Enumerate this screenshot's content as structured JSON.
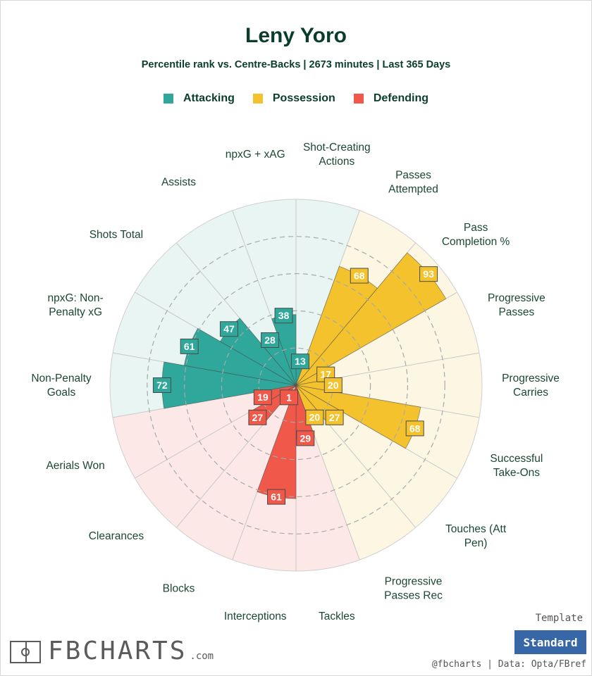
{
  "title": "Leny Yoro",
  "subtitle": "Percentile rank vs. Centre-Backs | 2673 minutes | Last 365 Days",
  "legend": [
    {
      "label": "Attacking",
      "color": "#2fa89b"
    },
    {
      "label": "Possession",
      "color": "#f3c22c"
    },
    {
      "label": "Defending",
      "color": "#f0584a"
    }
  ],
  "chart_data": {
    "type": "polar-bar",
    "title": "Leny Yoro",
    "subtitle": "Percentile rank vs. Centre-Backs | 2673 minutes | Last 365 Days",
    "range": [
      0,
      100
    ],
    "categories": [
      {
        "label": "Shot-Creating Actions",
        "value": 13,
        "group": "Attacking"
      },
      {
        "label": "Passes Attempted",
        "value": 68,
        "group": "Possession"
      },
      {
        "label": "Pass Completion %",
        "value": 93,
        "group": "Possession"
      },
      {
        "label": "Progressive Passes",
        "value": 17,
        "group": "Possession"
      },
      {
        "label": "Progressive Carries",
        "value": 20,
        "group": "Possession"
      },
      {
        "label": "Successful Take-Ons",
        "value": 68,
        "group": "Possession"
      },
      {
        "label": "Touches (Att Pen)",
        "value": 27,
        "group": "Possession"
      },
      {
        "label": "Progressive Passes Rec",
        "value": 20,
        "group": "Possession"
      },
      {
        "label": "Tackles",
        "value": 29,
        "group": "Defending"
      },
      {
        "label": "Interceptions",
        "value": 61,
        "group": "Defending"
      },
      {
        "label": "Blocks",
        "value": 1,
        "group": "Defending"
      },
      {
        "label": "Clearances",
        "value": 27,
        "group": "Defending"
      },
      {
        "label": "Aerials Won",
        "value": 19,
        "group": "Defending"
      },
      {
        "label": "Non-Penalty Goals",
        "value": 72,
        "group": "Attacking"
      },
      {
        "label": "npxG: Non-Penalty xG",
        "value": 61,
        "group": "Attacking"
      },
      {
        "label": "Shots Total",
        "value": 47,
        "group": "Attacking"
      },
      {
        "label": "Assists",
        "value": 28,
        "group": "Attacking"
      },
      {
        "label": "npxG + xAG",
        "value": 38,
        "group": "Attacking"
      }
    ],
    "grid": "dashed rings",
    "legend_position": "top"
  },
  "footer": {
    "logo_text": "FBCHARTS",
    "logo_suffix": ".com",
    "template_label": "Template",
    "template_button": "Standard",
    "credit": "@fbcharts  |  Data: Opta/FBref"
  }
}
